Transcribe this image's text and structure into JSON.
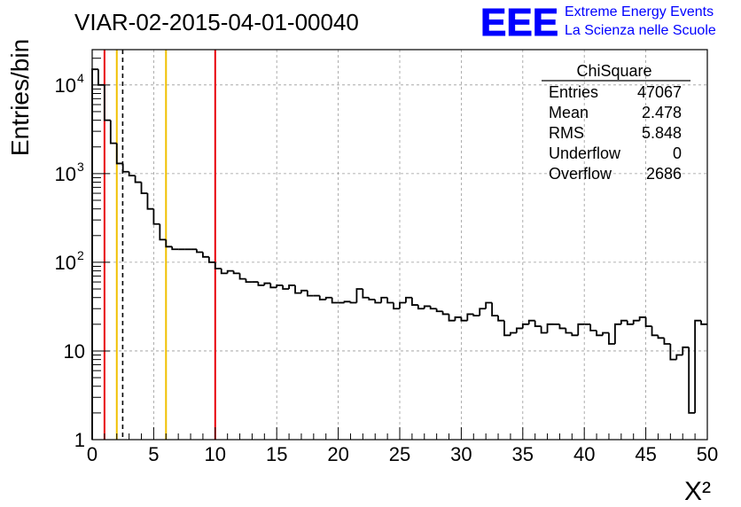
{
  "title": "VIAR-02-2015-04-01-00040",
  "logo": {
    "mark": "EEE",
    "line1": "Extreme Energy Events",
    "line2": "La Scienza nelle Scuole",
    "color": "#0000ff"
  },
  "stats": {
    "name": "ChiSquare",
    "rows": [
      {
        "label": "Entries",
        "value": "47067"
      },
      {
        "label": "Mean",
        "value": "2.478"
      },
      {
        "label": "RMS",
        "value": "5.848"
      },
      {
        "label": "Underflow",
        "value": "0"
      },
      {
        "label": "Overflow",
        "value": "2686"
      }
    ]
  },
  "chart_data": {
    "type": "bar",
    "histogram": true,
    "title": "VIAR-02-2015-04-01-00040",
    "xlabel": "X²",
    "ylabel": "Entries/bin",
    "xlim": [
      0,
      50
    ],
    "ylim": [
      1,
      25000
    ],
    "ylog": true,
    "grid": true,
    "bin_width": 0.5,
    "bin_start": 0,
    "values": [
      15000,
      10000,
      4000,
      2200,
      1300,
      1050,
      950,
      800,
      600,
      400,
      270,
      180,
      150,
      140,
      140,
      140,
      140,
      130,
      115,
      100,
      85,
      75,
      80,
      75,
      65,
      60,
      60,
      55,
      58,
      52,
      55,
      50,
      55,
      45,
      48,
      42,
      42,
      38,
      40,
      35,
      35,
      36,
      35,
      50,
      40,
      38,
      35,
      40,
      35,
      30,
      35,
      40,
      33,
      30,
      32,
      30,
      28,
      26,
      22,
      24,
      22,
      26,
      25,
      30,
      35,
      25,
      22,
      15,
      16,
      18,
      20,
      22,
      19,
      16,
      20,
      20,
      18,
      16,
      15,
      20,
      20,
      17,
      15,
      16,
      12,
      20,
      22,
      20,
      22,
      24,
      19,
      15,
      14,
      12,
      8,
      9,
      11,
      2,
      22,
      20
    ],
    "vlines": [
      {
        "x": 1,
        "color": "#e8000b",
        "style": "solid"
      },
      {
        "x": 2,
        "color": "#f0c000",
        "style": "solid"
      },
      {
        "x": 2.48,
        "color": "#000000",
        "style": "dashed"
      },
      {
        "x": 6,
        "color": "#f0c000",
        "style": "solid"
      },
      {
        "x": 10,
        "color": "#e8000b",
        "style": "solid"
      }
    ],
    "x_ticks": [
      "0",
      "5",
      "10",
      "15",
      "20",
      "25",
      "30",
      "35",
      "40",
      "45",
      "50"
    ],
    "y_ticks": [
      {
        "value": 1,
        "base": "1",
        "exp": ""
      },
      {
        "value": 10,
        "base": "10",
        "exp": ""
      },
      {
        "value": 100,
        "base": "10",
        "exp": "2"
      },
      {
        "value": 1000,
        "base": "10",
        "exp": "3"
      },
      {
        "value": 10000,
        "base": "10",
        "exp": "4"
      }
    ]
  }
}
